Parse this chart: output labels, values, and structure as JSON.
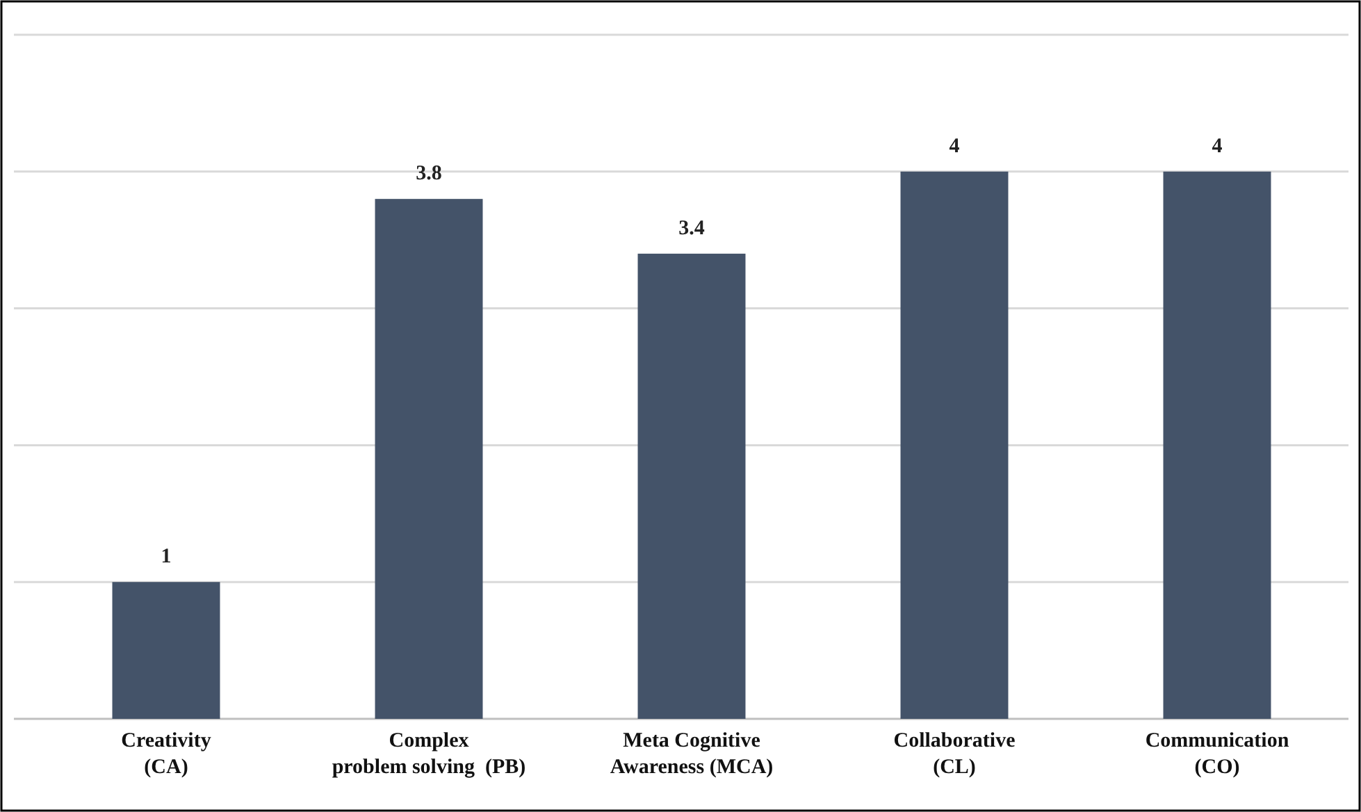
{
  "chart_data": {
    "type": "bar",
    "categories": [
      "Creativity\n(CA)",
      "Complex\nproblem solving  (PB)",
      "Meta Cognitive\nAwareness (MCA)",
      "Collaborative\n(CL)",
      "Communication\n(CO)"
    ],
    "values": [
      1,
      3.8,
      3.4,
      4,
      4
    ],
    "color": "#445369",
    "ylim": [
      0,
      5
    ],
    "yticks": [
      {
        "value": 0,
        "label": null
      },
      {
        "value": 1,
        "label": null
      },
      {
        "value": 2,
        "label": null
      },
      {
        "value": 3,
        "label": null
      },
      {
        "value": 4,
        "label": null
      },
      {
        "value": 5,
        "label": null
      }
    ],
    "grid": "y",
    "tick_labels": "x",
    "data_labels": true
  }
}
